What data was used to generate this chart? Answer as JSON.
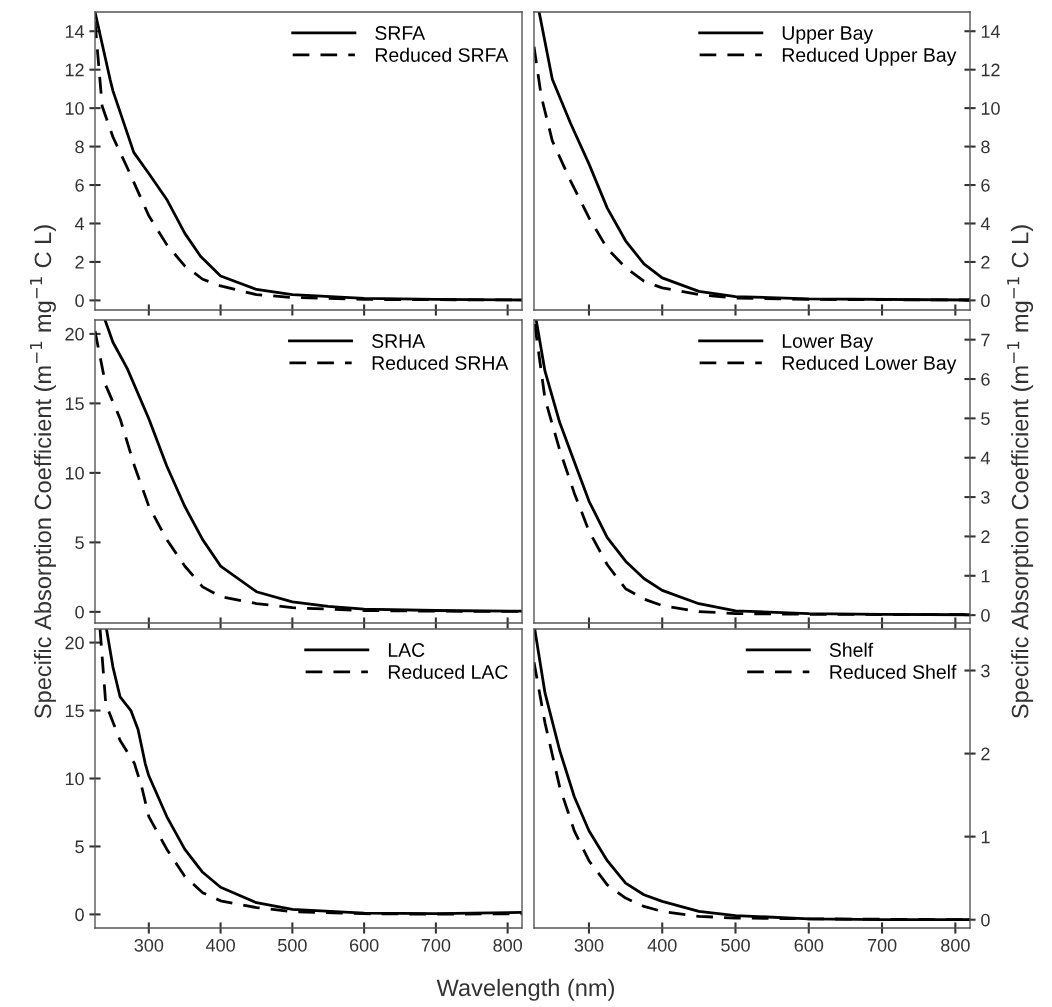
{
  "chart_data": [
    {
      "type": "line",
      "legend": "upper right",
      "grid": false,
      "tick_labels": "y",
      "xlim": [
        225,
        820
      ],
      "xticks": [
        300,
        400,
        500,
        600,
        700,
        800
      ],
      "ylim": [
        -0.5,
        15
      ],
      "yticks": [
        0,
        2,
        4,
        6,
        8,
        10,
        12,
        14
      ],
      "series": [
        {
          "name": "SRFA",
          "color": "#000000",
          "line_style": "solid",
          "x": [
            225,
            246,
            250,
            279,
            300,
            325,
            350,
            372,
            400,
            450,
            500,
            600,
            700,
            820
          ],
          "values": [
            15,
            11.5,
            10.9,
            7.7,
            6.6,
            5.25,
            3.5,
            2.3,
            1.27,
            0.57,
            0.3,
            0.1,
            0.05,
            0.02
          ]
        },
        {
          "name": "Reduced SRFA",
          "color": "#000000",
          "line_style": "dashed",
          "x": [
            225,
            235,
            250,
            270,
            300,
            325,
            350,
            375,
            400,
            450,
            500,
            600,
            820
          ],
          "values": [
            14.5,
            10.1,
            8.5,
            6.9,
            4.4,
            2.9,
            1.8,
            1.1,
            0.75,
            0.3,
            0.15,
            0.05,
            0.02
          ]
        }
      ]
    },
    {
      "type": "line",
      "legend": "upper right",
      "grid": false,
      "tick_labels": "y",
      "xlim": [
        225,
        820
      ],
      "xticks": [
        300,
        400,
        500,
        600,
        700,
        800
      ],
      "ylim": [
        -0.5,
        15
      ],
      "yticks": [
        0,
        2,
        4,
        6,
        8,
        10,
        12,
        14
      ],
      "series": [
        {
          "name": "Upper Bay",
          "color": "#000000",
          "line_style": "solid",
          "x": [
            232,
            250,
            275,
            300,
            325,
            350,
            375,
            400,
            450,
            500,
            600,
            820
          ],
          "values": [
            15,
            11.5,
            9.2,
            7.1,
            4.8,
            3.1,
            1.9,
            1.17,
            0.47,
            0.2,
            0.08,
            0.02
          ]
        },
        {
          "name": "Reduced Upper Bay",
          "color": "#000000",
          "line_style": "dashed",
          "x": [
            225,
            235,
            250,
            275,
            300,
            325,
            350,
            375,
            400,
            450,
            500,
            600,
            820
          ],
          "values": [
            13.2,
            10.6,
            8.3,
            6.2,
            4.3,
            2.7,
            1.7,
            1.0,
            0.65,
            0.3,
            0.12,
            0.05,
            0.02
          ]
        }
      ]
    },
    {
      "type": "line",
      "legend": "upper right",
      "grid": false,
      "tick_labels": "y",
      "ylabel": "Specific Absorption Coefficient (m$^{−1}$ mg$^{−1}$ C L)",
      "xlim": [
        225,
        820
      ],
      "xticks": [
        300,
        400,
        500,
        600,
        700,
        800
      ],
      "ylim": [
        -0.8,
        21
      ],
      "yticks": [
        0,
        5,
        10,
        15,
        20
      ],
      "series": [
        {
          "name": "SRHA",
          "color": "#000000",
          "line_style": "solid",
          "x": [
            239,
            250,
            270,
            300,
            325,
            350,
            375,
            400,
            450,
            500,
            550,
            600,
            700,
            820
          ],
          "values": [
            21,
            19.4,
            17.5,
            13.9,
            10.5,
            7.6,
            5.2,
            3.3,
            1.45,
            0.72,
            0.4,
            0.2,
            0.1,
            0.05
          ]
        },
        {
          "name": "Reduced SRHA",
          "color": "#000000",
          "line_style": "dashed",
          "x": [
            225,
            240,
            260,
            280,
            300,
            325,
            350,
            375,
            400,
            450,
            500,
            600,
            700,
            820
          ],
          "values": [
            20.2,
            16.3,
            13.9,
            10.5,
            7.6,
            5.2,
            3.3,
            1.8,
            1.1,
            0.6,
            0.3,
            0.1,
            0.05,
            0.03
          ]
        }
      ]
    },
    {
      "type": "line",
      "legend": "upper right",
      "grid": false,
      "tick_labels": "y",
      "ylabel": "Specific Absorption Coefficient (m$^{−1}$ mg$^{−1}$ C L)",
      "xlim": [
        225,
        820
      ],
      "xticks": [
        300,
        400,
        500,
        600,
        700,
        800
      ],
      "ylim": [
        -0.2,
        7.5
      ],
      "yticks": [
        0,
        1,
        2,
        3,
        4,
        5,
        6,
        7
      ],
      "series": [
        {
          "name": "Lower Bay",
          "color": "#000000",
          "line_style": "solid",
          "x": [
            228,
            240,
            260,
            280,
            300,
            325,
            350,
            375,
            400,
            450,
            500,
            600,
            700,
            820
          ],
          "values": [
            7.5,
            6.2,
            4.9,
            3.9,
            2.9,
            1.97,
            1.37,
            0.93,
            0.63,
            0.29,
            0.11,
            0.04,
            0.02,
            0.01
          ]
        },
        {
          "name": "Reduced Lower Bay",
          "color": "#000000",
          "line_style": "dashed",
          "x": [
            226,
            240,
            260,
            280,
            300,
            325,
            350,
            375,
            400,
            450,
            500,
            600,
            820
          ],
          "values": [
            7.4,
            5.5,
            4.2,
            3.1,
            2.14,
            1.28,
            0.67,
            0.41,
            0.24,
            0.09,
            0.04,
            0.02,
            0.01
          ]
        }
      ]
    },
    {
      "type": "line",
      "legend": "upper right",
      "grid": false,
      "xlabel": "Wavelength (nm)",
      "xlim": [
        225,
        820
      ],
      "xticks": [
        300,
        400,
        500,
        600,
        700,
        800
      ],
      "ylim": [
        -1,
        21
      ],
      "yticks": [
        0,
        5,
        10,
        15,
        20
      ],
      "series": [
        {
          "name": "LAC",
          "color": "#000000",
          "line_style": "solid",
          "x": [
            241,
            250,
            260,
            275,
            285,
            295,
            300,
            325,
            350,
            375,
            400,
            450,
            500,
            600,
            700,
            820
          ],
          "values": [
            21,
            18.2,
            16.0,
            15.0,
            13.6,
            11.1,
            10.2,
            7.2,
            4.8,
            3.1,
            2.0,
            0.86,
            0.37,
            0.1,
            0.05,
            0.15
          ]
        },
        {
          "name": "Reduced LAC",
          "color": "#000000",
          "line_style": "dashed",
          "x": [
            232,
            240,
            260,
            280,
            290,
            300,
            325,
            350,
            375,
            400,
            450,
            500,
            600,
            700,
            820
          ],
          "values": [
            21,
            15.5,
            12.8,
            11.1,
            9.4,
            7.2,
            4.8,
            2.8,
            1.6,
            1.0,
            0.5,
            0.2,
            0.05,
            0.02,
            0.05
          ]
        }
      ]
    },
    {
      "type": "line",
      "legend": "upper right",
      "grid": false,
      "xlim": [
        225,
        820
      ],
      "xticks": [
        300,
        400,
        500,
        600,
        700,
        800
      ],
      "ylim": [
        -0.1,
        3.5
      ],
      "yticks": [
        0,
        1,
        2,
        3
      ],
      "series": [
        {
          "name": "Shelf",
          "color": "#000000",
          "line_style": "solid",
          "x": [
            226,
            240,
            260,
            280,
            300,
            325,
            350,
            375,
            400,
            450,
            500,
            600,
            700,
            820
          ],
          "values": [
            3.5,
            2.73,
            2.04,
            1.48,
            1.07,
            0.71,
            0.44,
            0.3,
            0.22,
            0.1,
            0.05,
            0.01,
            0.0,
            0.0
          ]
        },
        {
          "name": "Reduced Shelf",
          "color": "#000000",
          "line_style": "dashed",
          "x": [
            225,
            240,
            260,
            280,
            300,
            325,
            350,
            375,
            400,
            450,
            500,
            600,
            820
          ],
          "values": [
            3.1,
            2.37,
            1.6,
            1.07,
            0.71,
            0.42,
            0.26,
            0.16,
            0.1,
            0.04,
            0.02,
            0.01,
            0.0
          ]
        }
      ]
    }
  ]
}
